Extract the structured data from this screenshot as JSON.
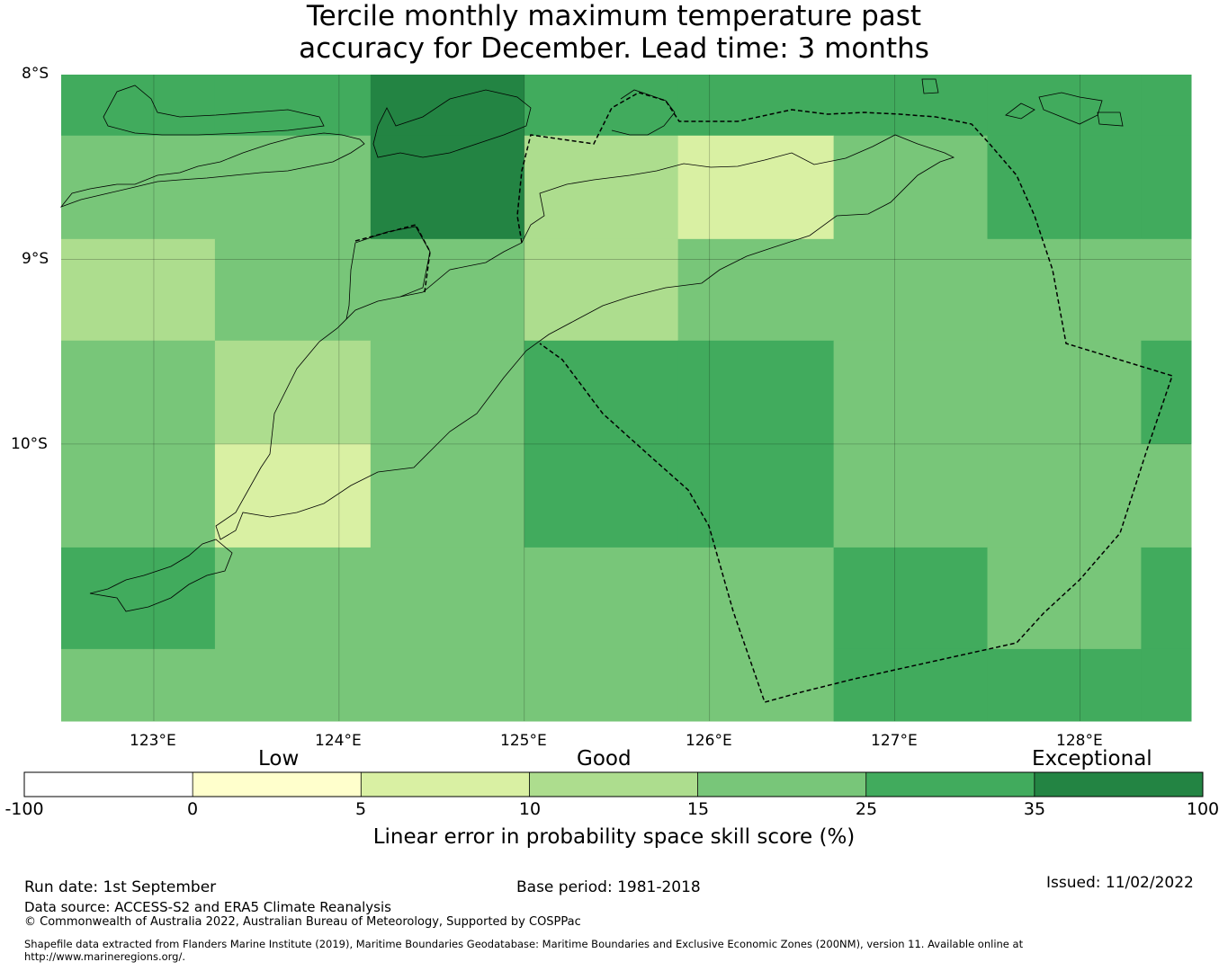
{
  "title": {
    "line1": "Tercile monthly maximum temperature past",
    "line2": "accuracy for December. Lead time: 3 months"
  },
  "map": {
    "lon_range": [
      122.5,
      128.6
    ],
    "lat_range": [
      -11.5,
      -8.0
    ],
    "lon_ticks": [
      "123°E",
      "124°E",
      "125°E",
      "126°E",
      "127°E",
      "128°E"
    ],
    "lat_ticks": [
      "8°S",
      "9°S",
      "10°S"
    ],
    "grid": true,
    "skill_grid": {
      "lon_edges": [
        122.5,
        123.33,
        124.17,
        125.0,
        125.83,
        126.67,
        127.5,
        128.33,
        128.6
      ],
      "lat_edges": [
        -8.0,
        -8.33,
        -8.89,
        -9.44,
        -10.0,
        -10.56,
        -11.11,
        -11.5
      ],
      "rows": [
        [
          25,
          25,
          35,
          25,
          25,
          25,
          25,
          25
        ],
        [
          15,
          15,
          35,
          10,
          5,
          15,
          25,
          25
        ],
        [
          10,
          15,
          15,
          10,
          15,
          15,
          15,
          15
        ],
        [
          15,
          10,
          15,
          25,
          25,
          15,
          15,
          25
        ],
        [
          15,
          5,
          15,
          25,
          25,
          15,
          15,
          15
        ],
        [
          25,
          15,
          15,
          15,
          15,
          25,
          15,
          25
        ],
        [
          15,
          15,
          15,
          15,
          15,
          25,
          25,
          25
        ]
      ]
    }
  },
  "colorbar": {
    "categories": [
      "Low",
      "Good",
      "Exceptional"
    ],
    "ticks": [
      "-100",
      "0",
      "5",
      "10",
      "15",
      "25",
      "35",
      "100"
    ],
    "colors": [
      "#ffffff",
      "#ffffcc",
      "#d9f0a3",
      "#addd8e",
      "#78c679",
      "#41ab5d",
      "#238443"
    ],
    "label": "Linear error in probability space skill score (%)"
  },
  "footer": {
    "run_date": "Run date: 1st September",
    "base_period": "Base period: 1981-2018",
    "issued": "Issued: 11/02/2022",
    "data_source": "Data source: ACCESS-S2 and ERA5 Climate Reanalysis",
    "copyright": "© Commonwealth of Australia 2022, Australian Bureau of Meteorology, Supported by COSPPac",
    "shapefile_line1": "Shapefile data extracted from Flanders Marine Institute (2019), Maritime Boundaries Geodatabase: Maritime Boundaries and Exclusive Economic Zones (200NM), version 11. Available online at",
    "shapefile_line2": "http://www.marineregions.org/."
  }
}
